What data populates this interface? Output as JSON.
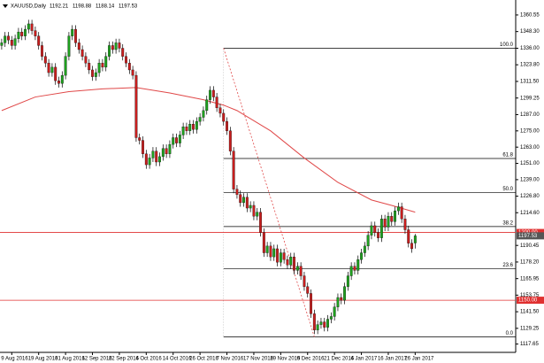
{
  "chart_data": {
    "type": "candlestick",
    "title": "XAUUSD,Daily",
    "ylim": [
      1111.5,
      1370.3
    ],
    "xlim": [
      -0.5,
      152.9
    ],
    "yticks": [
      {
        "value": 1360.55,
        "label": "1360.55"
      },
      {
        "value": 1348.3,
        "label": "1348.30"
      },
      {
        "value": 1336,
        "label": "1336.00"
      },
      {
        "value": 1323.8,
        "label": "1323.80"
      },
      {
        "value": 1311.5,
        "label": "1311.50"
      },
      {
        "value": 1299.25,
        "label": "1299.25"
      },
      {
        "value": 1287,
        "label": "1287.00"
      },
      {
        "value": 1275,
        "label": "1275.00"
      },
      {
        "value": 1263,
        "label": "1263.00"
      },
      {
        "value": 1251,
        "label": "1251.00"
      },
      {
        "value": 1239,
        "label": "1239.00"
      },
      {
        "value": 1226.8,
        "label": "1226.80"
      },
      {
        "value": 1214.6,
        "label": "1214.60"
      },
      {
        "value": 1190.45,
        "label": "1190.45"
      },
      {
        "value": 1178.2,
        "label": "1178.20"
      },
      {
        "value": 1165.95,
        "label": "1165.95"
      },
      {
        "value": 1153.75,
        "label": "1153.75"
      },
      {
        "value": 1141.5,
        "label": "1141.50"
      },
      {
        "value": 1129.25,
        "label": "1129.25"
      },
      {
        "value": 1117.65,
        "label": "1117.65"
      }
    ],
    "xticks": [
      {
        "value": 3,
        "label": "9 Aug 2016"
      },
      {
        "value": 11,
        "label": "19 Aug 2016"
      },
      {
        "value": 19,
        "label": "31 Aug 2016"
      },
      {
        "value": 27,
        "label": "12 Sep 2016"
      },
      {
        "value": 35,
        "label": "22 Sep 2016"
      },
      {
        "value": 43,
        "label": "4 Oct 2016"
      },
      {
        "value": 51,
        "label": "14 Oct 2016"
      },
      {
        "value": 59,
        "label": "26 Oct 2016"
      },
      {
        "value": 67,
        "label": "7 Nov 2016"
      },
      {
        "value": 75,
        "label": "17 Nov 2016"
      },
      {
        "value": 83,
        "label": "29 Nov 2016"
      },
      {
        "value": 91,
        "label": "9 Dec 2016"
      },
      {
        "value": 99,
        "label": "21 Dec 2016"
      },
      {
        "value": 107,
        "label": "4 Jan 2017"
      },
      {
        "value": 115,
        "label": "16 Jan 2017"
      },
      {
        "value": 123,
        "label": "26 Jan 2017"
      }
    ],
    "up_color": "#1ea01e",
    "down_color": "#c81e1e",
    "wick_color": "#000000",
    "open": [
      1338,
      1340,
      1345,
      1342,
      1338,
      1343,
      1348,
      1345,
      1350,
      1354,
      1349,
      1345,
      1338,
      1330,
      1325,
      1318,
      1322,
      1312,
      1310,
      1316,
      1330,
      1345,
      1350,
      1340,
      1335,
      1330,
      1325,
      1320,
      1315,
      1318,
      1325,
      1322,
      1330,
      1338,
      1335,
      1340,
      1336,
      1330,
      1325,
      1320,
      1316,
      1270,
      1268,
      1258,
      1250,
      1255,
      1260,
      1252,
      1256,
      1262,
      1258,
      1265,
      1270,
      1266,
      1272,
      1278,
      1275,
      1280,
      1276,
      1282,
      1285,
      1290,
      1298,
      1305,
      1300,
      1292,
      1288,
      1282,
      1275,
      1260,
      1232,
      1228,
      1222,
      1226,
      1218,
      1220,
      1212,
      1215,
      1200,
      1185,
      1190,
      1182,
      1188,
      1178,
      1185,
      1180,
      1176,
      1182,
      1172,
      1175,
      1168,
      1160,
      1155,
      1140,
      1128,
      1132,
      1134,
      1130,
      1136,
      1138,
      1145,
      1152,
      1150,
      1160,
      1168,
      1175,
      1172,
      1180,
      1185,
      1190,
      1198,
      1205,
      1200,
      1196,
      1210,
      1204,
      1212,
      1208,
      1216,
      1219,
      1210,
      1202,
      1192,
      1192.21
    ],
    "high": [
      1343,
      1348,
      1348,
      1345,
      1346,
      1351,
      1351,
      1353,
      1357,
      1357,
      1352,
      1348,
      1341,
      1333,
      1328,
      1325,
      1325,
      1315,
      1319,
      1333,
      1348,
      1353,
      1353,
      1343,
      1338,
      1333,
      1328,
      1323,
      1321,
      1328,
      1328,
      1333,
      1341,
      1341,
      1343,
      1343,
      1339,
      1333,
      1328,
      1323,
      1319,
      1273,
      1271,
      1261,
      1258,
      1263,
      1263,
      1259,
      1265,
      1265,
      1268,
      1273,
      1273,
      1275,
      1281,
      1281,
      1283,
      1283,
      1285,
      1288,
      1293,
      1301,
      1308,
      1308,
      1303,
      1295,
      1291,
      1285,
      1278,
      1263,
      1235,
      1231,
      1229,
      1229,
      1223,
      1223,
      1218,
      1218,
      1203,
      1193,
      1193,
      1191,
      1191,
      1188,
      1188,
      1183,
      1185,
      1185,
      1178,
      1178,
      1171,
      1163,
      1158,
      1143,
      1135,
      1137,
      1137,
      1139,
      1141,
      1148,
      1155,
      1155,
      1163,
      1171,
      1178,
      1178,
      1183,
      1188,
      1193,
      1201,
      1208,
      1208,
      1203,
      1213,
      1213,
      1215,
      1215,
      1219,
      1222,
      1222,
      1213,
      1205,
      1195,
      1198.88
    ],
    "low": [
      1335,
      1337,
      1339,
      1335,
      1335,
      1340,
      1342,
      1342,
      1347,
      1346,
      1342,
      1335,
      1327,
      1322,
      1315,
      1315,
      1309,
      1307,
      1307,
      1313,
      1327,
      1342,
      1337,
      1332,
      1327,
      1322,
      1317,
      1312,
      1312,
      1315,
      1319,
      1319,
      1327,
      1332,
      1332,
      1333,
      1327,
      1322,
      1317,
      1313,
      1267,
      1265,
      1255,
      1247,
      1247,
      1252,
      1249,
      1249,
      1253,
      1255,
      1255,
      1262,
      1263,
      1263,
      1269,
      1272,
      1272,
      1273,
      1273,
      1279,
      1282,
      1287,
      1295,
      1297,
      1289,
      1285,
      1279,
      1272,
      1257,
      1229,
      1225,
      1219,
      1219,
      1215,
      1215,
      1209,
      1209,
      1197,
      1182,
      1182,
      1179,
      1179,
      1175,
      1175,
      1177,
      1173,
      1173,
      1169,
      1169,
      1165,
      1157,
      1152,
      1137,
      1125,
      1125,
      1129,
      1127,
      1127,
      1133,
      1135,
      1142,
      1147,
      1147,
      1157,
      1165,
      1169,
      1169,
      1177,
      1182,
      1187,
      1195,
      1197,
      1193,
      1193,
      1201,
      1201,
      1205,
      1205,
      1213,
      1207,
      1199,
      1189,
      1185,
      1188.14
    ],
    "close": [
      1340,
      1345,
      1342,
      1338,
      1343,
      1348,
      1345,
      1350,
      1354,
      1349,
      1345,
      1338,
      1330,
      1325,
      1318,
      1322,
      1312,
      1310,
      1316,
      1330,
      1345,
      1350,
      1340,
      1335,
      1330,
      1325,
      1320,
      1315,
      1318,
      1325,
      1322,
      1330,
      1338,
      1335,
      1340,
      1336,
      1330,
      1325,
      1320,
      1316,
      1270,
      1268,
      1258,
      1250,
      1255,
      1260,
      1252,
      1256,
      1262,
      1258,
      1265,
      1270,
      1266,
      1272,
      1278,
      1275,
      1280,
      1276,
      1282,
      1285,
      1290,
      1298,
      1305,
      1300,
      1292,
      1288,
      1282,
      1275,
      1260,
      1232,
      1228,
      1222,
      1226,
      1218,
      1220,
      1212,
      1215,
      1200,
      1185,
      1190,
      1182,
      1188,
      1178,
      1185,
      1180,
      1176,
      1182,
      1172,
      1175,
      1168,
      1160,
      1155,
      1140,
      1128,
      1132,
      1134,
      1130,
      1136,
      1138,
      1145,
      1152,
      1150,
      1160,
      1168,
      1175,
      1172,
      1180,
      1185,
      1190,
      1198,
      1205,
      1200,
      1196,
      1210,
      1204,
      1212,
      1208,
      1216,
      1219,
      1210,
      1202,
      1192,
      1188,
      1197.53
    ],
    "ma": {
      "color": "#e04848",
      "x": [
        0,
        10,
        20,
        30,
        40,
        50,
        60,
        66,
        70,
        80,
        90,
        100,
        110,
        116,
        123
      ],
      "values": [
        1290,
        1300,
        1304,
        1306,
        1307,
        1303,
        1298,
        1294,
        1290,
        1275,
        1255,
        1237,
        1224,
        1220,
        1215
      ]
    },
    "trendline": {
      "color": "#e04848",
      "x": [
        66,
        93
      ],
      "values": [
        1336,
        1123
      ]
    },
    "fibonacci": {
      "color": "#000000",
      "start_x": 66,
      "levels": [
        {
          "value": 1336,
          "label": "100.0"
        },
        {
          "value": 1254.6,
          "label": "61.8"
        },
        {
          "value": 1229.5,
          "label": "50.0"
        },
        {
          "value": 1204.4,
          "label": "38.2"
        },
        {
          "value": 1173.3,
          "label": "23.6"
        },
        {
          "value": 1123,
          "label": "0.0"
        }
      ]
    },
    "hlines": {
      "color": "#e03030",
      "levels": [
        {
          "value": 1200,
          "label": "1200.00"
        },
        {
          "value": 1150,
          "label": "1150.00"
        }
      ]
    }
  }
}
